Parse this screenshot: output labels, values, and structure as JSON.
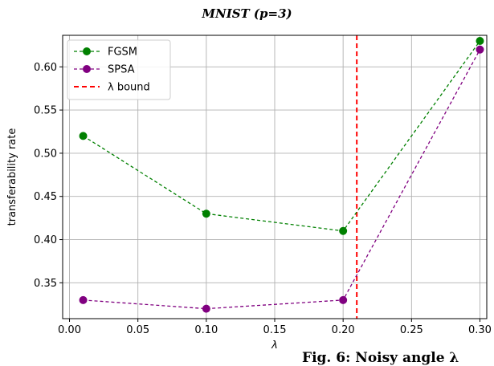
{
  "title": "MNIST (p=3)",
  "caption": "Fig. 6: Noisy angle λ",
  "chart_data": {
    "type": "line",
    "title": "MNIST (p=3)",
    "xlabel": "λ",
    "ylabel": "transferability rate",
    "xlim": [
      -0.005,
      0.305
    ],
    "ylim": [
      0.3085,
      0.6365
    ],
    "xticks": [
      0.0,
      0.05,
      0.1,
      0.15,
      0.2,
      0.25,
      0.3
    ],
    "xtick_labels": [
      "0.00",
      "0.05",
      "0.10",
      "0.15",
      "0.20",
      "0.25",
      "0.30"
    ],
    "yticks": [
      0.35,
      0.4,
      0.45,
      0.5,
      0.55,
      0.6
    ],
    "ytick_labels": [
      "0.35",
      "0.40",
      "0.45",
      "0.50",
      "0.55",
      "0.60"
    ],
    "grid": true,
    "legend_position": "top-left",
    "series": [
      {
        "name": "FGSM",
        "color": "#008000",
        "x": [
          0.01,
          0.1,
          0.2,
          0.3
        ],
        "y": [
          0.52,
          0.43,
          0.41,
          0.63
        ]
      },
      {
        "name": "SPSA",
        "color": "#800080",
        "x": [
          0.01,
          0.1,
          0.2,
          0.3
        ],
        "y": [
          0.33,
          0.32,
          0.33,
          0.62
        ]
      }
    ],
    "vline": {
      "name": "λ bound",
      "x": 0.21,
      "color": "#ff0000"
    }
  }
}
